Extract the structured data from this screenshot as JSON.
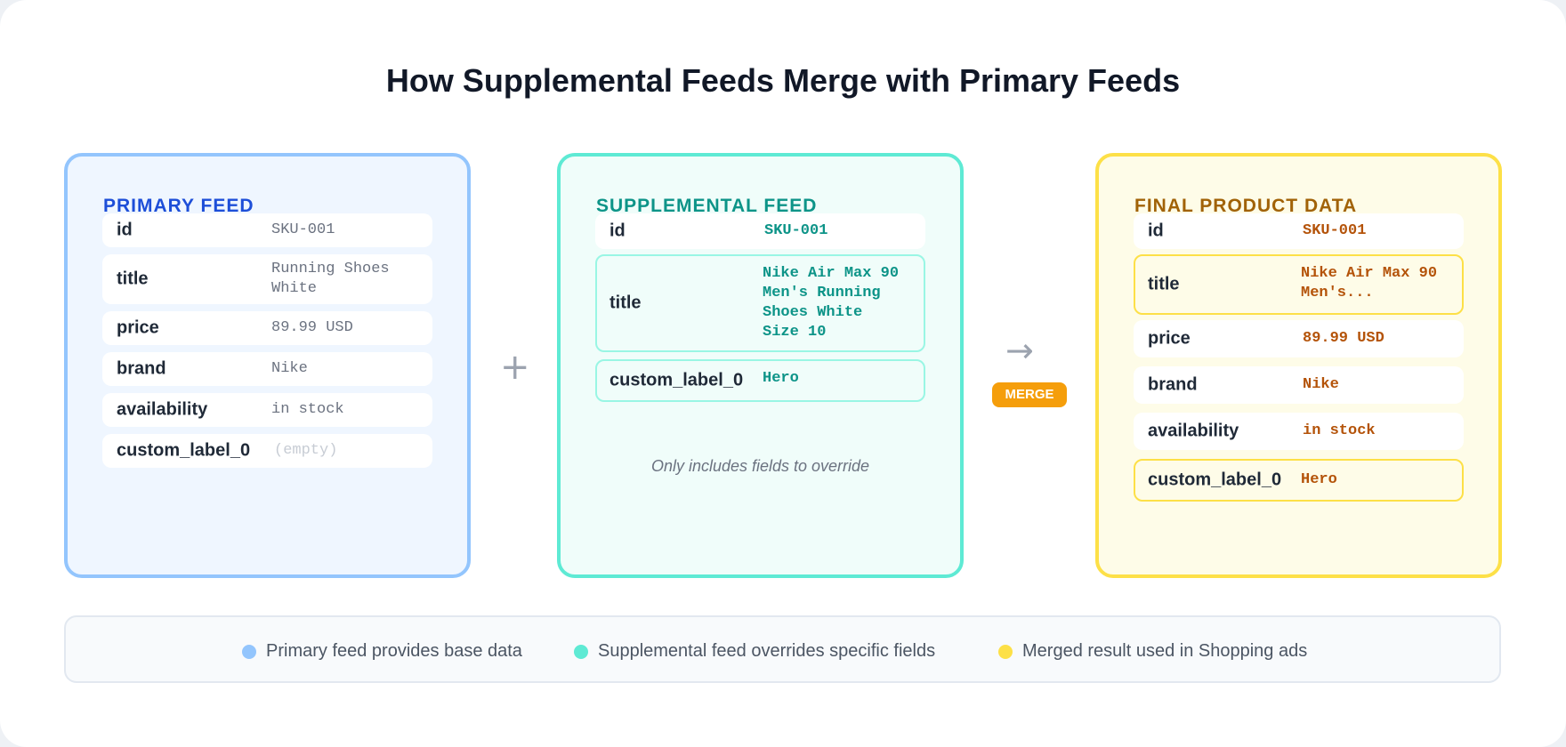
{
  "title": "How Supplemental Feeds Merge with Primary Feeds",
  "primary": {
    "heading": "PRIMARY FEED",
    "rows": [
      {
        "field": "id",
        "value": "SKU-001"
      },
      {
        "field": "title",
        "value": "Running Shoes White"
      },
      {
        "field": "price",
        "value": "89.99 USD"
      },
      {
        "field": "brand",
        "value": "Nike"
      },
      {
        "field": "availability",
        "value": "in stock"
      },
      {
        "field": "custom_label_0",
        "value": "(empty)"
      }
    ]
  },
  "plus_symbol": "+",
  "supplemental": {
    "heading": "SUPPLEMENTAL FEED",
    "rows": [
      {
        "field": "id",
        "value": "SKU-001"
      },
      {
        "field": "title",
        "value": "Nike Air Max 90 Men's Running Shoes White Size 10"
      },
      {
        "field": "custom_label_0",
        "value": "Hero"
      }
    ],
    "note": "Only includes fields to override"
  },
  "arrow_symbol": "→",
  "merge_label": "MERGE",
  "final": {
    "heading": "FINAL PRODUCT DATA",
    "rows": [
      {
        "field": "id",
        "value": "SKU-001"
      },
      {
        "field": "title",
        "value": "Nike Air Max 90 Men's..."
      },
      {
        "field": "price",
        "value": "89.99 USD"
      },
      {
        "field": "brand",
        "value": "Nike"
      },
      {
        "field": "availability",
        "value": "in stock"
      },
      {
        "field": "custom_label_0",
        "value": "Hero"
      }
    ]
  },
  "legend": [
    {
      "label": "Primary feed provides base data",
      "color": "#93c5fd"
    },
    {
      "label": "Supplemental feed overrides specific fields",
      "color": "#5eead4"
    },
    {
      "label": "Merged result used in Shopping ads",
      "color": "#fde047"
    }
  ]
}
